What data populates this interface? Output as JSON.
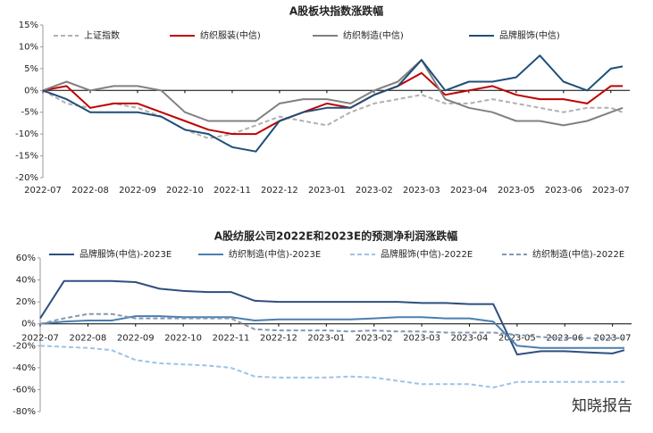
{
  "chart_data": [
    {
      "type": "line",
      "title": "A股板块指数涨跌幅",
      "x": [
        0,
        0.5,
        1,
        1.5,
        2,
        2.5,
        3,
        3.5,
        4,
        4.5,
        5,
        5.5,
        6,
        6.5,
        7,
        7.5,
        8,
        8.5,
        9,
        9.5,
        10,
        10.5,
        11,
        11.5,
        12,
        12.25
      ],
      "xlim": [
        0,
        12.4
      ],
      "xticks": [
        {
          "value": 0,
          "label": "2022-07"
        },
        {
          "value": 1,
          "label": "2022-08"
        },
        {
          "value": 2,
          "label": "2022-09"
        },
        {
          "value": 3,
          "label": "2022-10"
        },
        {
          "value": 4,
          "label": "2022-11"
        },
        {
          "value": 5,
          "label": "2022-12"
        },
        {
          "value": 6,
          "label": "2023-01"
        },
        {
          "value": 7,
          "label": "2023-02"
        },
        {
          "value": 8,
          "label": "2023-03"
        },
        {
          "value": 9,
          "label": "2023-04"
        },
        {
          "value": 10,
          "label": "2023-05"
        },
        {
          "value": 11,
          "label": "2023-06"
        },
        {
          "value": 12,
          "label": "2023-07"
        }
      ],
      "ylim": [
        -20,
        15
      ],
      "yticks": [
        {
          "value": -20,
          "label": "-20%"
        },
        {
          "value": -15,
          "label": "-15%"
        },
        {
          "value": -10,
          "label": "-10%"
        },
        {
          "value": -5,
          "label": "-5%"
        },
        {
          "value": 0,
          "label": "0%"
        },
        {
          "value": 5,
          "label": "5%"
        },
        {
          "value": 10,
          "label": "10%"
        },
        {
          "value": 15,
          "label": "15%"
        }
      ],
      "legend": "top",
      "series": [
        {
          "name": "上证指数",
          "color": "#b0b0b0",
          "dashed": true,
          "values": [
            0,
            -3,
            -4,
            -3,
            -4,
            -6,
            -9,
            -11,
            -10,
            -8,
            -6,
            -7,
            -8,
            -5,
            -3,
            -2,
            -1,
            -3,
            -3,
            -2,
            -3,
            -4,
            -5,
            -4,
            -4,
            -5
          ]
        },
        {
          "name": "纺织服装(中信)",
          "color": "#c00000",
          "dashed": false,
          "values": [
            0,
            1,
            -4,
            -3,
            -3,
            -5,
            -7,
            -9,
            -10,
            -10,
            -7,
            -5,
            -3,
            -4,
            -1,
            1,
            4,
            -1,
            0,
            1,
            -1,
            -2,
            -2,
            -3,
            1,
            1
          ]
        },
        {
          "name": "纺织制造(中信)",
          "color": "#808080",
          "dashed": false,
          "values": [
            0,
            2,
            0,
            1,
            1,
            0,
            -5,
            -7,
            -7,
            -7,
            -3,
            -2,
            -2,
            -3,
            0,
            2,
            7,
            -2,
            -4,
            -5,
            -7,
            -7,
            -8,
            -7,
            -5,
            -4
          ]
        },
        {
          "name": "品牌服饰(中信)",
          "color": "#1f4e79",
          "dashed": false,
          "values": [
            0,
            -2,
            -5,
            -5,
            -5,
            -6,
            -9,
            -10,
            -13,
            -14,
            -7,
            -5,
            -4,
            -4,
            -1,
            1,
            7,
            0,
            2,
            2,
            3,
            8,
            2,
            0,
            5,
            5.5
          ]
        }
      ]
    },
    {
      "type": "line",
      "title": "A股纺服公司2022E和2023E的预测净利润涨跌幅",
      "x": [
        0,
        0.5,
        1,
        1.5,
        2,
        2.5,
        3,
        3.5,
        4,
        4.5,
        5,
        5.5,
        6,
        6.5,
        7,
        7.5,
        8,
        8.5,
        9,
        9.5,
        10,
        10.5,
        11,
        11.5,
        12,
        12.25
      ],
      "xlim": [
        0,
        12.4
      ],
      "xticks": [
        {
          "value": 0,
          "label": "2022-07"
        },
        {
          "value": 1,
          "label": "2022-08"
        },
        {
          "value": 2,
          "label": "2022-09"
        },
        {
          "value": 3,
          "label": "2022-10"
        },
        {
          "value": 4,
          "label": "2022-11"
        },
        {
          "value": 5,
          "label": "2022-12"
        },
        {
          "value": 6,
          "label": "2023-01"
        },
        {
          "value": 7,
          "label": "2023-02"
        },
        {
          "value": 8,
          "label": "2023-03"
        },
        {
          "value": 9,
          "label": "2023-04"
        },
        {
          "value": 10,
          "label": "2023-05"
        },
        {
          "value": 11,
          "label": "2023-06"
        },
        {
          "value": 12,
          "label": "2023-07"
        }
      ],
      "ylim": [
        -80,
        60
      ],
      "yticks": [
        {
          "value": -80,
          "label": "-80%"
        },
        {
          "value": -60,
          "label": "-60%"
        },
        {
          "value": -40,
          "label": "-40%"
        },
        {
          "value": -20,
          "label": "-20%"
        },
        {
          "value": 0,
          "label": "0%"
        },
        {
          "value": 20,
          "label": "20%"
        },
        {
          "value": 40,
          "label": "40%"
        },
        {
          "value": 60,
          "label": "60%"
        }
      ],
      "legend": "top",
      "series": [
        {
          "name": "品牌服饰(中信)-2023E",
          "color": "#2f4f7f",
          "dashed": false,
          "values": [
            5,
            39,
            39,
            39,
            38,
            32,
            30,
            29,
            29,
            21,
            20,
            20,
            20,
            20,
            20,
            20,
            19,
            19,
            18,
            18,
            -28,
            -25,
            -25,
            -26,
            -27,
            -24
          ]
        },
        {
          "name": "纺织制造(中信)-2023E",
          "color": "#4a7fb0",
          "dashed": false,
          "values": [
            0,
            2,
            3,
            3,
            7,
            7,
            6,
            6,
            6,
            3,
            4,
            4,
            4,
            4,
            5,
            6,
            6,
            5,
            5,
            2,
            -20,
            -22,
            -22,
            -22,
            -22,
            -22
          ]
        },
        {
          "name": "品牌服饰(中信)-2022E",
          "color": "#9dc3e6",
          "dashed": true,
          "values": [
            -20,
            -21,
            -22,
            -24,
            -33,
            -36,
            -37,
            -38,
            -40,
            -48,
            -49,
            -49,
            -49,
            -48,
            -49,
            -52,
            -55,
            -55,
            -55,
            -58,
            -53,
            -53,
            -53,
            -53,
            -53,
            -53
          ]
        },
        {
          "name": "纺织制造(中信)-2022E",
          "color": "#8497b0",
          "dashed": true,
          "values": [
            0,
            5,
            9,
            9,
            5,
            5,
            5,
            5,
            5,
            -5,
            -6,
            -6,
            -6,
            -7,
            -6,
            -7,
            -7,
            -8,
            -8,
            -8,
            -10,
            -12,
            -13,
            -13,
            -13,
            -13
          ]
        }
      ]
    }
  ],
  "watermark": "知晓报告"
}
